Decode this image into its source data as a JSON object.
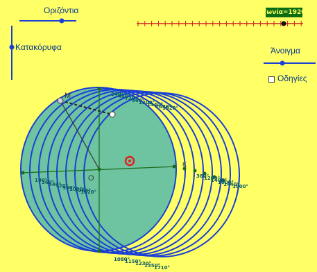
{
  "controls": {
    "horizontal_label": "Οριζόντια",
    "vertical_label": "Κατακόρυφα",
    "aperture_label": "Άνοιγμα",
    "guides_label": "Οδηγίες",
    "angle_badge": "Γωνία=1920"
  },
  "points": {
    "m_label": "M",
    "o_label": "O",
    "k_label": "K"
  },
  "angle_labels": {
    "top": [
      "240°",
      "480°",
      "720°",
      "960°",
      "1200°",
      "1440°",
      "1680°",
      "1920°"
    ],
    "left": [
      "180°",
      "360°",
      "540°",
      "720°",
      "900°",
      "1080°",
      "1260°",
      "1620°"
    ],
    "right": [
      "360°",
      "1200°",
      "1400°",
      "1600°",
      "1440°",
      "1800°"
    ],
    "bottom": [
      "1080°",
      "1150°",
      "1230°",
      "1350°",
      "1710°"
    ]
  },
  "colors": {
    "background": "#ffff66",
    "circle": "#1a3fd6",
    "fill": "#6ec4a0",
    "slider_tick": "#cc2222",
    "badge": "#0b6e12"
  }
}
